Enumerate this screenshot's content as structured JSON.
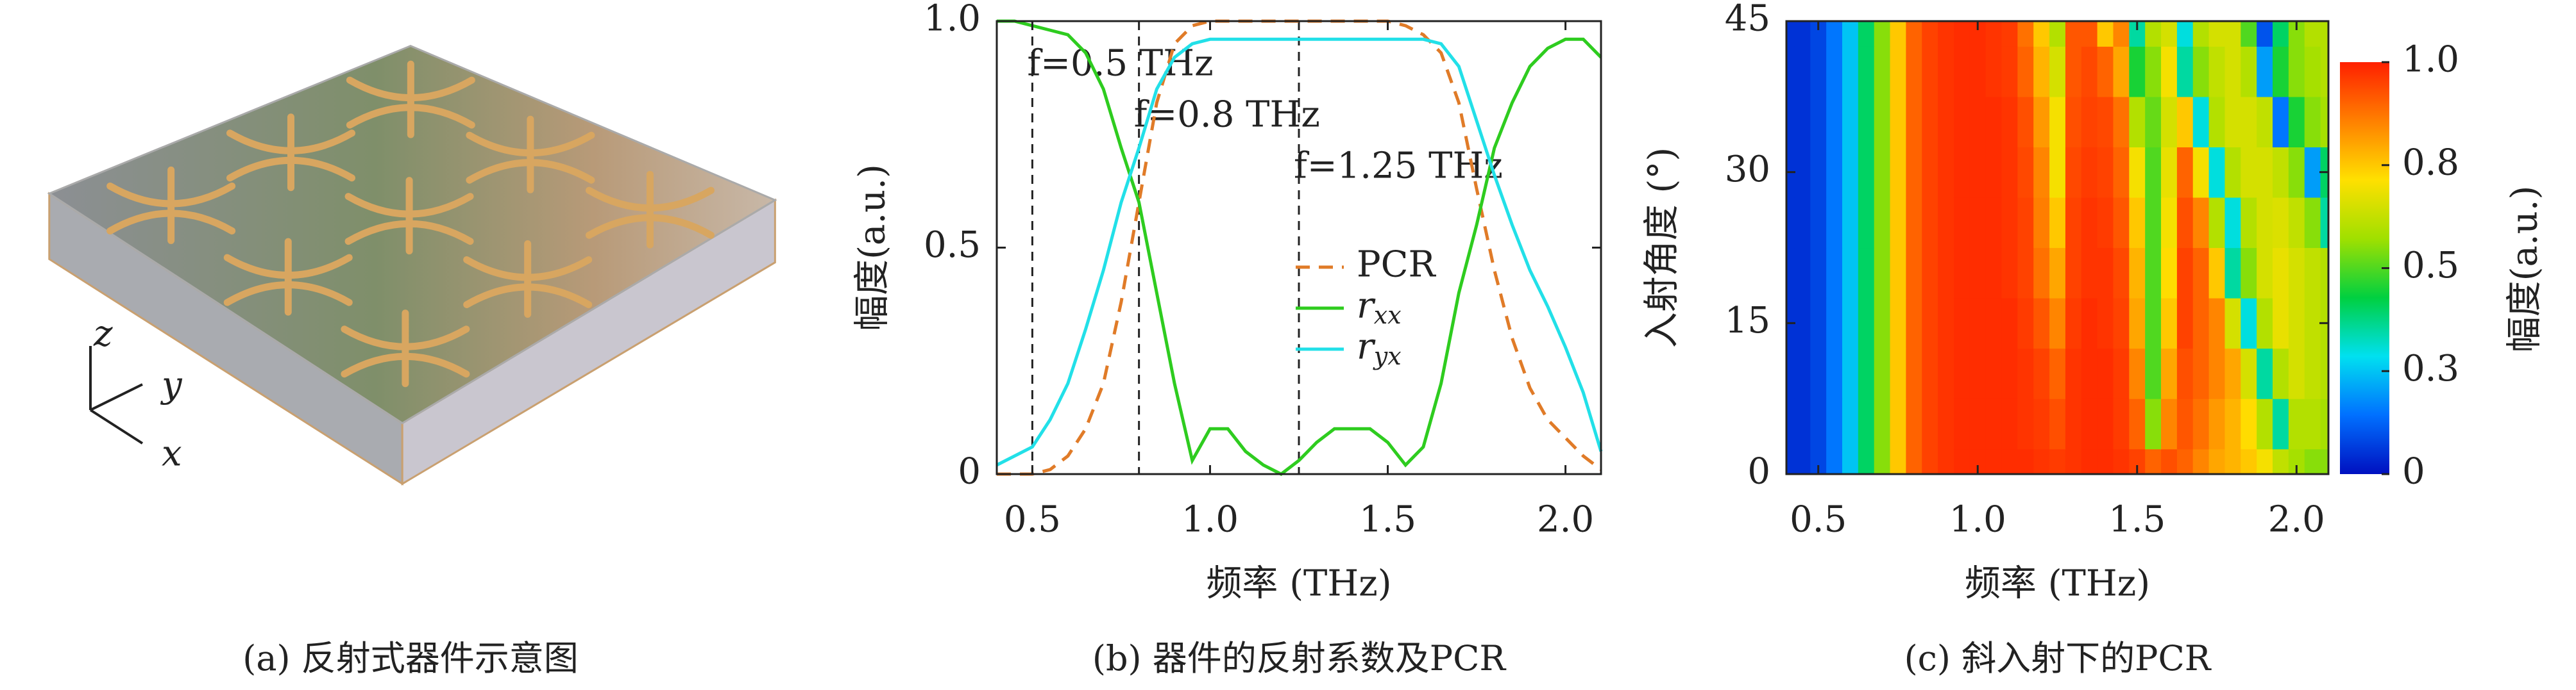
{
  "illustration": {
    "caption": "(a) 反射式器件示意图",
    "axes": [
      "z",
      "y",
      "x"
    ]
  },
  "chart_data": [
    {
      "type": "line",
      "caption": "(b) 器件的反射系数及PCR",
      "x_label": "频率 (THz)",
      "y_label": "幅度(a.u.)",
      "x": [
        0.4,
        0.45,
        0.5,
        0.55,
        0.6,
        0.65,
        0.7,
        0.75,
        0.8,
        0.85,
        0.9,
        0.95,
        1.0,
        1.05,
        1.1,
        1.15,
        1.2,
        1.25,
        1.3,
        1.35,
        1.4,
        1.45,
        1.5,
        1.55,
        1.6,
        1.65,
        1.7,
        1.75,
        1.8,
        1.85,
        1.9,
        1.95,
        2.0,
        2.05,
        2.1
      ],
      "series": [
        {
          "name": "PCR",
          "color": "#e07b28",
          "linestyle": "dashed",
          "values": [
            0,
            0,
            0,
            0.01,
            0.04,
            0.1,
            0.2,
            0.38,
            0.6,
            0.82,
            0.95,
            0.99,
            1,
            1,
            1,
            1,
            1,
            1,
            1,
            1,
            1,
            1,
            1,
            0.99,
            0.97,
            0.93,
            0.82,
            0.63,
            0.45,
            0.3,
            0.19,
            0.12,
            0.08,
            0.04,
            0.01
          ]
        },
        {
          "name": "rxx",
          "color": "#2ecc1f",
          "linestyle": "solid",
          "values": [
            1,
            1,
            0.99,
            0.98,
            0.97,
            0.93,
            0.85,
            0.72,
            0.6,
            0.4,
            0.2,
            0.03,
            0.1,
            0.1,
            0.05,
            0.02,
            0,
            0.03,
            0.07,
            0.1,
            0.1,
            0.1,
            0.07,
            0.02,
            0.06,
            0.2,
            0.4,
            0.55,
            0.72,
            0.82,
            0.9,
            0.94,
            0.96,
            0.96,
            0.92
          ]
        },
        {
          "name": "ryx",
          "color": "#22e0e8",
          "linestyle": "solid",
          "values": [
            0.02,
            0.04,
            0.06,
            0.12,
            0.2,
            0.32,
            0.45,
            0.6,
            0.72,
            0.85,
            0.92,
            0.95,
            0.96,
            0.96,
            0.96,
            0.96,
            0.96,
            0.96,
            0.96,
            0.96,
            0.96,
            0.96,
            0.96,
            0.96,
            0.96,
            0.95,
            0.9,
            0.78,
            0.66,
            0.55,
            0.45,
            0.37,
            0.28,
            0.18,
            0.05
          ]
        }
      ],
      "annotations": [
        {
          "x": 0.5,
          "text": "f=0.5 THz"
        },
        {
          "x": 0.8,
          "text": "f=0.8 THz"
        },
        {
          "x": 1.25,
          "text": "f=1.25 THz"
        }
      ],
      "xlim": [
        0.4,
        2.1
      ],
      "xticks": [
        0.5,
        {
          "value": 1,
          "label": "1.0"
        },
        1.5,
        {
          "value": 2,
          "label": "2.0"
        }
      ],
      "ylim": [
        0,
        1
      ],
      "yticks": [
        0,
        0.5,
        {
          "value": 1,
          "label": "1.0"
        }
      ],
      "grid": false
    },
    {
      "type": "heatmap",
      "caption": "(c) 斜入射下的PCR",
      "x_label": "频率 (THz)",
      "y_label": "入射角度 (°)",
      "colorbar_label": "幅度(a.u.)",
      "x": [
        0.4,
        0.45,
        0.5,
        0.55,
        0.6,
        0.65,
        0.7,
        0.75,
        0.8,
        0.85,
        0.9,
        0.95,
        1.0,
        1.05,
        1.1,
        1.15,
        1.2,
        1.25,
        1.3,
        1.35,
        1.4,
        1.45,
        1.5,
        1.55,
        1.6,
        1.65,
        1.7,
        1.75,
        1.8,
        1.85,
        1.9,
        1.95,
        2.0,
        2.05,
        2.1
      ],
      "y": [
        0,
        5,
        10,
        15,
        20,
        25,
        30,
        35,
        40,
        45
      ],
      "z": [
        [
          0.05,
          0.05,
          0.08,
          0.15,
          0.25,
          0.4,
          0.55,
          0.75,
          0.9,
          0.95,
          0.97,
          0.98,
          0.98,
          0.98,
          0.98,
          0.98,
          0.97,
          0.96,
          0.97,
          0.98,
          0.98,
          0.97,
          0.95,
          0.9,
          0.93,
          0.9,
          0.85,
          0.8,
          0.78,
          0.75,
          0.7,
          0.62,
          0.58,
          0.55,
          0.55
        ],
        [
          0.05,
          0.05,
          0.08,
          0.15,
          0.25,
          0.4,
          0.55,
          0.75,
          0.9,
          0.95,
          0.97,
          0.98,
          0.98,
          0.98,
          0.98,
          0.97,
          0.96,
          0.93,
          0.97,
          0.98,
          0.98,
          0.96,
          0.9,
          0.55,
          0.85,
          0.92,
          0.88,
          0.82,
          0.78,
          0.72,
          0.6,
          0.35,
          0.6,
          0.6,
          0.58
        ],
        [
          0.05,
          0.05,
          0.08,
          0.15,
          0.25,
          0.4,
          0.55,
          0.75,
          0.9,
          0.95,
          0.97,
          0.98,
          0.98,
          0.98,
          0.98,
          0.97,
          0.95,
          0.9,
          0.97,
          0.98,
          0.98,
          0.96,
          0.85,
          0.5,
          0.8,
          0.93,
          0.9,
          0.85,
          0.8,
          0.65,
          0.35,
          0.6,
          0.65,
          0.62,
          0.6
        ],
        [
          0.05,
          0.05,
          0.08,
          0.15,
          0.25,
          0.4,
          0.55,
          0.75,
          0.9,
          0.95,
          0.97,
          0.98,
          0.98,
          0.98,
          0.98,
          0.96,
          0.92,
          0.85,
          0.96,
          0.98,
          0.97,
          0.95,
          0.8,
          0.5,
          0.75,
          0.95,
          0.9,
          0.85,
          0.65,
          0.3,
          0.6,
          0.68,
          0.65,
          0.62,
          0.6
        ],
        [
          0.05,
          0.05,
          0.08,
          0.15,
          0.25,
          0.4,
          0.55,
          0.75,
          0.9,
          0.95,
          0.97,
          0.98,
          0.98,
          0.98,
          0.97,
          0.95,
          0.88,
          0.8,
          0.95,
          0.97,
          0.97,
          0.94,
          0.78,
          0.5,
          0.72,
          0.95,
          0.9,
          0.75,
          0.35,
          0.55,
          0.65,
          0.68,
          0.65,
          0.62,
          0.6
        ],
        [
          0.05,
          0.05,
          0.08,
          0.15,
          0.25,
          0.4,
          0.55,
          0.75,
          0.9,
          0.95,
          0.97,
          0.98,
          0.98,
          0.98,
          0.97,
          0.95,
          0.86,
          0.75,
          0.95,
          0.97,
          0.96,
          0.92,
          0.75,
          0.5,
          0.7,
          0.93,
          0.85,
          0.6,
          0.3,
          0.6,
          0.65,
          0.66,
          0.62,
          0.55,
          0.35
        ],
        [
          0.05,
          0.05,
          0.08,
          0.15,
          0.25,
          0.4,
          0.55,
          0.75,
          0.9,
          0.95,
          0.97,
          0.98,
          0.98,
          0.98,
          0.97,
          0.94,
          0.85,
          0.7,
          0.94,
          0.96,
          0.95,
          0.9,
          0.7,
          0.5,
          0.68,
          0.9,
          0.7,
          0.3,
          0.6,
          0.65,
          0.65,
          0.62,
          0.55,
          0.2,
          0.4
        ],
        [
          0.05,
          0.05,
          0.08,
          0.15,
          0.25,
          0.4,
          0.55,
          0.75,
          0.9,
          0.95,
          0.97,
          0.98,
          0.98,
          0.98,
          0.97,
          0.93,
          0.82,
          0.7,
          0.93,
          0.95,
          0.94,
          0.88,
          0.6,
          0.52,
          0.65,
          0.75,
          0.3,
          0.6,
          0.65,
          0.65,
          0.62,
          0.15,
          0.45,
          0.55,
          0.58
        ],
        [
          0.05,
          0.05,
          0.08,
          0.15,
          0.25,
          0.4,
          0.55,
          0.75,
          0.9,
          0.95,
          0.97,
          0.98,
          0.98,
          0.97,
          0.96,
          0.9,
          0.78,
          0.65,
          0.92,
          0.94,
          0.9,
          0.8,
          0.45,
          0.55,
          0.7,
          0.35,
          0.55,
          0.62,
          0.65,
          0.6,
          0.2,
          0.45,
          0.55,
          0.58,
          0.6
        ],
        [
          0.05,
          0.05,
          0.08,
          0.15,
          0.25,
          0.4,
          0.55,
          0.75,
          0.9,
          0.95,
          0.97,
          0.98,
          0.98,
          0.97,
          0.96,
          0.88,
          0.75,
          0.6,
          0.92,
          0.92,
          0.75,
          0.85,
          0.35,
          0.6,
          0.65,
          0.3,
          0.6,
          0.65,
          0.65,
          0.5,
          0.1,
          0.4,
          0.55,
          0.6,
          0.6
        ]
      ],
      "xlim": [
        0.4,
        2.1
      ],
      "xticks": [
        0.5,
        {
          "value": 1,
          "label": "1.0"
        },
        1.5,
        {
          "value": 2,
          "label": "2.0"
        }
      ],
      "ylim": [
        0,
        45
      ],
      "yticks": [
        0,
        15,
        30,
        45
      ],
      "clim": [
        0,
        1
      ],
      "cticks": [
        0,
        {
          "value": 0.25,
          "label": "0.3"
        },
        0.5,
        {
          "value": 0.75,
          "label": "0.8"
        },
        {
          "value": 1,
          "label": "1.0"
        }
      ],
      "colors": [
        "#0010c0",
        "#0070ff",
        "#00e0f0",
        "#00d040",
        "#a0e000",
        "#ffe000",
        "#ff8000",
        "#ff2000"
      ]
    }
  ]
}
